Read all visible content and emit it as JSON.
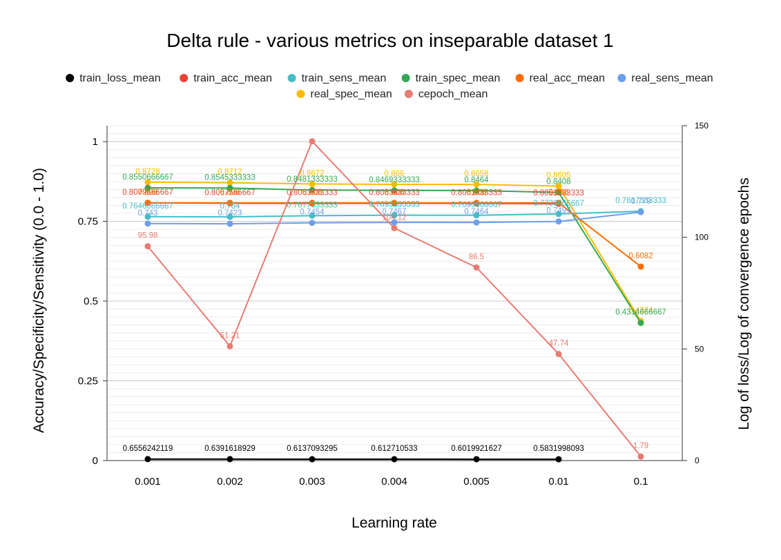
{
  "chart_data": {
    "type": "line",
    "title": "Delta rule - various metrics on inseparable dataset 1",
    "xlabel": "Learning rate",
    "ylabel": "Accuracy/Specificity/Sensitivity (0.0 - 1.0)",
    "y2label": "Log of loss/Log of convergence epochs",
    "categories": [
      "0.001",
      "0.002",
      "0.003",
      "0.004",
      "0.005",
      "0.01",
      "0.1"
    ],
    "ylim": [
      0,
      1.05
    ],
    "y2lim": [
      0,
      150
    ],
    "yticks": [
      0,
      0.25,
      0.5,
      0.75,
      1
    ],
    "ytick_labels": [
      "0",
      "0.25",
      "0.5",
      "0.75",
      "1"
    ],
    "y2ticks": [
      0,
      50,
      100,
      150
    ],
    "y2tick_labels": [
      "0",
      "50",
      "100",
      "150"
    ],
    "series": [
      {
        "name": "train_loss_mean",
        "color": "#000000",
        "axis": "right",
        "values": [
          0.6556242119,
          0.6391618929,
          0.6137093295,
          0.612710533,
          0.6019921627,
          0.5831998093,
          null
        ],
        "labels": [
          "0.6556242119",
          "0.6391618929",
          "0.6137093295",
          "0.612710533",
          "0.6019921627",
          "0.5831998093",
          ""
        ]
      },
      {
        "name": "train_acc_mean",
        "color": "#ea4335",
        "axis": "left",
        "values": [
          0.8079666667,
          0.8067566667,
          0.8063333333,
          0.8063533333,
          0.8061333333,
          0.8051333333,
          null
        ],
        "labels": [
          "0.8079666667",
          "0.8067566667",
          "0.8063333333",
          "0.8063533333",
          "0.8061333333",
          "0.8051333333",
          ""
        ]
      },
      {
        "name": "train_sens_mean",
        "color": "#46bdc6",
        "axis": "left",
        "values": [
          0.7646666667,
          0.764,
          0.7677333333,
          0.7693333333,
          0.7690666667,
          0.7730666667,
          0.7817333333
        ],
        "labels": [
          "0.7646666667",
          "0.764",
          "0.7677333333",
          "0.7693333333",
          "0.7690666667",
          "0.7730666667",
          "0.7817333333"
        ]
      },
      {
        "name": "train_spec_mean",
        "color": "#34a853",
        "axis": "left",
        "values": [
          0.8550666667,
          0.8545333333,
          0.8481333333,
          0.8469333333,
          0.8464,
          0.8408,
          0.4314666667
        ],
        "labels": [
          "0.8550666667",
          "0.8545333333",
          "0.8481333333",
          "0.8469333333",
          "0.8464",
          "0.8408",
          "0.4314666667"
        ]
      },
      {
        "name": "real_acc_mean",
        "color": "#ff6d01",
        "axis": "left",
        "values": [
          0.808,
          0.808,
          0.808,
          0.808,
          0.808,
          0.808,
          0.6082
        ],
        "labels": [
          "0.808",
          "0.808",
          "0.808",
          "0.808",
          "0.808",
          "0.808",
          "0.6082"
        ]
      },
      {
        "name": "real_sens_mean",
        "color": "#6d9eeb",
        "axis": "left",
        "values": [
          0.743,
          0.7423,
          0.7454,
          0.7467,
          0.7464,
          0.7497,
          0.779
        ],
        "labels": [
          "0.743",
          "0.7423",
          "0.7454",
          "0.7467",
          "0.7464",
          "0.7497",
          "0.779"
        ]
      },
      {
        "name": "real_spec_mean",
        "color": "#fbbc04",
        "axis": "left",
        "values": [
          0.8728,
          0.8712,
          0.8672,
          0.866,
          0.8658,
          0.8605,
          0.4374
        ],
        "labels": [
          "0.8728",
          "0.8712",
          "0.8672",
          "0.866",
          "0.8658",
          "0.8605",
          "0.4374"
        ]
      },
      {
        "name": "cepoch_mean",
        "color": "#e67c73",
        "axis": "right",
        "values": [
          95.98,
          51.21,
          143,
          104.12,
          86.5,
          47.74,
          1.79
        ],
        "labels": [
          "95.98",
          "51.21",
          "",
          "104.12",
          "86.5",
          "47.74",
          "1.79"
        ]
      }
    ],
    "legend": {
      "position": "top"
    }
  }
}
